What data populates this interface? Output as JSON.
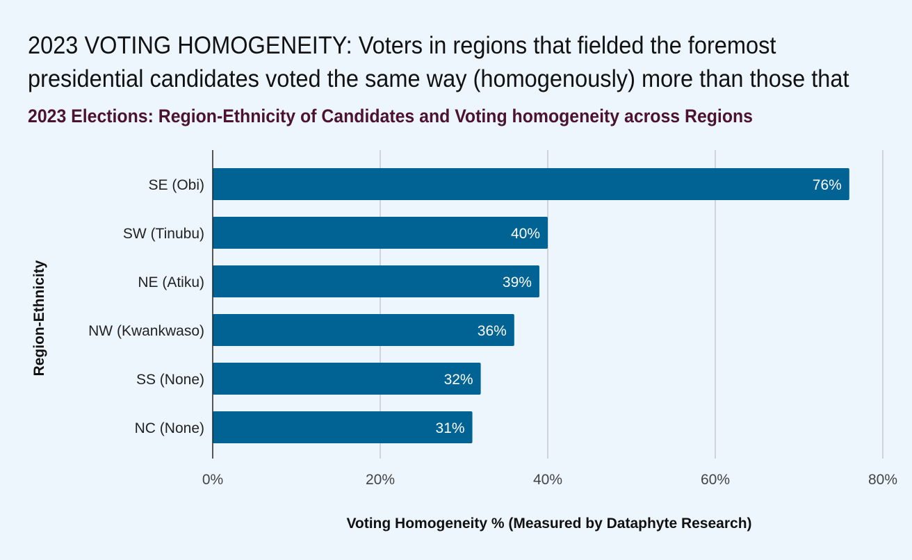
{
  "headline": {
    "line1": "2023 VOTING HOMOGENEITY: Voters in regions that fielded the foremost",
    "line2": "presidential candidates voted the same way (homogenously) more than those that"
  },
  "colors": {
    "background": "#eef6fd",
    "bar": "#006394",
    "subtitle": "#4b1232",
    "grid": "#c4c8cc",
    "axis": "#222222"
  },
  "chart_data": {
    "type": "bar",
    "orientation": "horizontal",
    "title": "2023 Elections: Region-Ethnicity of Candidates and Voting homogeneity across Regions",
    "categories": [
      "SE (Obi)",
      "SW (Tinubu)",
      "NE (Atiku)",
      "NW (Kwankwaso)",
      "SS (None)",
      "NC (None)"
    ],
    "values": [
      76,
      40,
      39,
      36,
      32,
      31
    ],
    "data_labels": [
      "76%",
      "40%",
      "39%",
      "36%",
      "32%",
      "31%"
    ],
    "xlabel": "Voting Homogeneity % (Measured by Dataphyte Research)",
    "ylabel": "Region-Ethnicity",
    "xlim": [
      0,
      80
    ],
    "xticks": [
      0,
      20,
      40,
      60,
      80
    ],
    "xtick_labels": [
      "0%",
      "20%",
      "40%",
      "60%",
      "80%"
    ],
    "grid": true,
    "legend": "none"
  }
}
